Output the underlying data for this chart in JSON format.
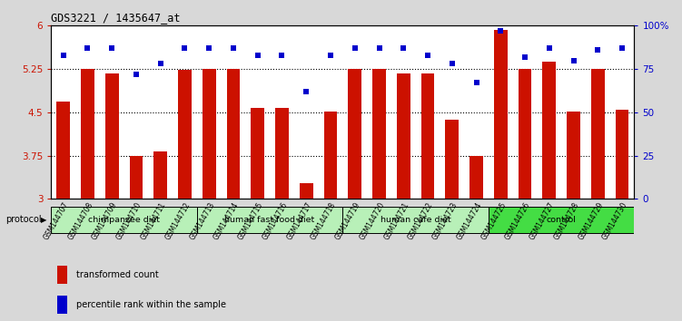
{
  "title": "GDS3221 / 1435647_at",
  "samples": [
    "GSM144707",
    "GSM144708",
    "GSM144709",
    "GSM144710",
    "GSM144711",
    "GSM144712",
    "GSM144713",
    "GSM144714",
    "GSM144715",
    "GSM144716",
    "GSM144717",
    "GSM144718",
    "GSM144719",
    "GSM144720",
    "GSM144721",
    "GSM144722",
    "GSM144723",
    "GSM144724",
    "GSM144725",
    "GSM144726",
    "GSM144727",
    "GSM144728",
    "GSM144729",
    "GSM144730"
  ],
  "bar_values": [
    4.68,
    5.25,
    5.18,
    3.75,
    3.83,
    5.23,
    5.25,
    5.25,
    4.57,
    4.57,
    3.27,
    4.52,
    5.25,
    5.25,
    5.18,
    5.18,
    4.38,
    3.75,
    5.93,
    5.25,
    5.38,
    4.52,
    5.25,
    4.55
  ],
  "dot_values": [
    83,
    87,
    87,
    72,
    78,
    87,
    87,
    87,
    83,
    83,
    62,
    83,
    87,
    87,
    87,
    83,
    78,
    67,
    97,
    82,
    87,
    80,
    86,
    87
  ],
  "groups": [
    {
      "label": "chimpanzee diet",
      "start": 0,
      "end": 6,
      "color": "#b8f0b8"
    },
    {
      "label": "human fast food diet",
      "start": 6,
      "end": 12,
      "color": "#b8f0b8"
    },
    {
      "label": "human cafe diet",
      "start": 12,
      "end": 18,
      "color": "#b8f0b8"
    },
    {
      "label": "control",
      "start": 18,
      "end": 24,
      "color": "#44dd44"
    }
  ],
  "bar_color": "#cc1100",
  "dot_color": "#0000cc",
  "ymin": 3.0,
  "ymax": 6.0,
  "yticks": [
    3.0,
    3.75,
    4.5,
    5.25,
    6.0
  ],
  "ytick_labels": [
    "3",
    "3.75",
    "4.5",
    "5.25",
    "6"
  ],
  "right_yticks": [
    0,
    25,
    50,
    75,
    100
  ],
  "right_ytick_labels": [
    "0",
    "25",
    "50",
    "75",
    "100%"
  ],
  "grid_lines": [
    3.75,
    4.5,
    5.25
  ],
  "bg_color": "#d8d8d8",
  "plot_bg": "#ffffff",
  "legend_bar_label": "transformed count",
  "legend_dot_label": "percentile rank within the sample",
  "protocol_label": "protocol"
}
